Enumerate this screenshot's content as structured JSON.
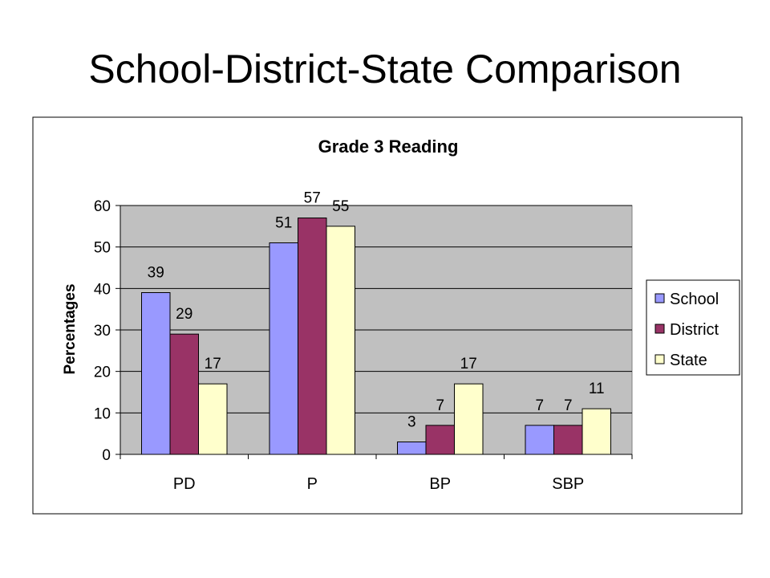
{
  "slide": {
    "title": "School-District-State Comparison"
  },
  "chart_data": {
    "type": "bar",
    "title": "Grade 3 Reading",
    "xlabel": "",
    "ylabel": "Percentages",
    "categories": [
      "PD",
      "P",
      "BP",
      "SBP"
    ],
    "series": [
      {
        "name": "School",
        "values": [
          39,
          51,
          3,
          7
        ],
        "color": "#9999ff"
      },
      {
        "name": "District",
        "values": [
          29,
          57,
          7,
          7
        ],
        "color": "#993366"
      },
      {
        "name": "State",
        "values": [
          17,
          55,
          17,
          11
        ],
        "color": "#ffffcc"
      }
    ],
    "ylim": [
      0,
      60
    ],
    "yticks": [
      0,
      10,
      20,
      30,
      40,
      50,
      60
    ],
    "grid": true,
    "plot_background": "#c0c0c0",
    "legend_position": "right"
  }
}
